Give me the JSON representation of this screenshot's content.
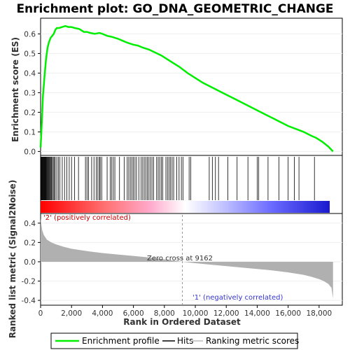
{
  "chart_data": {
    "type": "line",
    "title": "Enrichment plot: GO_DNA_GEOMETRIC_CHANGE",
    "xlabel": "Rank in Ordered Dataset",
    "top_ylabel": "Enrichment score (ES)",
    "bottom_ylabel": "Ranked list metric (Signal2Noise)",
    "xlim": [
      0,
      19500
    ],
    "x_ticks": [
      "0",
      "2,000",
      "4,000",
      "6,000",
      "8,000",
      "10,000",
      "12,000",
      "14,000",
      "16,000",
      "18,000"
    ],
    "x_tick_values": [
      0,
      2000,
      4000,
      6000,
      8000,
      10000,
      12000,
      14000,
      16000,
      18000
    ],
    "es_ylim": [
      -0.02,
      0.68
    ],
    "es_ticks": [
      "0.0",
      "0.1",
      "0.2",
      "0.3",
      "0.4",
      "0.5",
      "0.6"
    ],
    "es_tick_values": [
      0.0,
      0.1,
      0.2,
      0.3,
      0.4,
      0.5,
      0.6
    ],
    "metric_ylim": [
      -0.45,
      0.5
    ],
    "metric_ticks": [
      "-0.4",
      "-0.2",
      "0.0",
      "0.2",
      "0.4"
    ],
    "metric_tick_values": [
      -0.4,
      -0.2,
      0.0,
      0.2,
      0.4
    ],
    "n_genes": 18900,
    "zero_cross": 9162,
    "zero_cross_label": "Zero cross at 9162",
    "pos_label": "'2' (positively correlated)",
    "neg_label": "'1' (negatively correlated)",
    "es_curve": {
      "x": [
        0,
        80,
        150,
        250,
        350,
        450,
        550,
        650,
        750,
        850,
        950,
        1050,
        1200,
        1400,
        1600,
        1800,
        2000,
        2200,
        2500,
        2800,
        3000,
        3200,
        3500,
        3800,
        4000,
        4300,
        4600,
        5000,
        5300,
        5600,
        6000,
        6300,
        6600,
        7000,
        7400,
        7800,
        8200,
        8600,
        9000,
        9500,
        10000,
        10500,
        11000,
        11500,
        12000,
        12500,
        13000,
        13500,
        14000,
        14500,
        15000,
        15500,
        16000,
        16500,
        17000,
        17500,
        17800,
        18200,
        18600,
        18900
      ],
      "y": [
        0.02,
        0.15,
        0.28,
        0.38,
        0.47,
        0.53,
        0.56,
        0.58,
        0.59,
        0.6,
        0.62,
        0.63,
        0.63,
        0.635,
        0.64,
        0.635,
        0.635,
        0.63,
        0.625,
        0.61,
        0.61,
        0.605,
        0.6,
        0.605,
        0.6,
        0.59,
        0.585,
        0.575,
        0.565,
        0.555,
        0.545,
        0.54,
        0.53,
        0.52,
        0.505,
        0.49,
        0.47,
        0.45,
        0.43,
        0.4,
        0.375,
        0.35,
        0.33,
        0.31,
        0.29,
        0.27,
        0.25,
        0.23,
        0.21,
        0.19,
        0.17,
        0.15,
        0.13,
        0.115,
        0.1,
        0.08,
        0.07,
        0.05,
        0.025,
        0.0
      ]
    },
    "hits": [
      30,
      60,
      90,
      120,
      150,
      180,
      210,
      240,
      270,
      300,
      330,
      360,
      400,
      440,
      480,
      520,
      560,
      600,
      650,
      700,
      760,
      820,
      880,
      950,
      1050,
      1150,
      1250,
      1400,
      1550,
      1700,
      1850,
      2000,
      2200,
      2450,
      2900,
      3000,
      3100,
      3300,
      3450,
      3600,
      3700,
      3800,
      3850,
      3950,
      4300,
      4500,
      4600,
      4700,
      4800,
      5100,
      5400,
      5600,
      5700,
      5800,
      5900,
      6000,
      6100,
      6200,
      6350,
      6500,
      6600,
      6700,
      6800,
      6900,
      7000,
      7100,
      7200,
      7300,
      7500,
      7600,
      7700,
      7800,
      7900,
      8100,
      8200,
      8300,
      8400,
      8500,
      8600,
      8800,
      8950,
      9100,
      9200,
      9600,
      9700,
      10900,
      11100,
      11300,
      11500,
      12100,
      12700,
      13400,
      14000,
      14100,
      14700,
      15400,
      16000,
      16400,
      16700,
      17700
    ],
    "metric_curve": {
      "x": [
        0,
        100,
        200,
        400,
        700,
        1000,
        1500,
        2000,
        3000,
        4000,
        5000,
        6000,
        7000,
        8000,
        9162,
        10000,
        11000,
        12000,
        13000,
        14000,
        15000,
        16000,
        17000,
        17500,
        18000,
        18300,
        18600,
        18800,
        18900
      ],
      "y": [
        0.45,
        0.33,
        0.28,
        0.23,
        0.2,
        0.18,
        0.155,
        0.135,
        0.11,
        0.09,
        0.075,
        0.06,
        0.045,
        0.025,
        0.0,
        -0.015,
        -0.03,
        -0.045,
        -0.06,
        -0.075,
        -0.09,
        -0.11,
        -0.135,
        -0.155,
        -0.18,
        -0.2,
        -0.23,
        -0.27,
        -0.38
      ]
    }
  },
  "legend": {
    "items": [
      {
        "label": "Enrichment profile",
        "color": "#00ee00"
      },
      {
        "label": "Hits",
        "color": "#000000"
      },
      {
        "label": "Ranking metric scores",
        "color": "#bbbbbb"
      }
    ]
  },
  "colors": {
    "es_line": "#00ee00",
    "metric_fill": "#b0b0b0",
    "pos_label": "#cc0000",
    "neg_label": "#3333cc"
  }
}
